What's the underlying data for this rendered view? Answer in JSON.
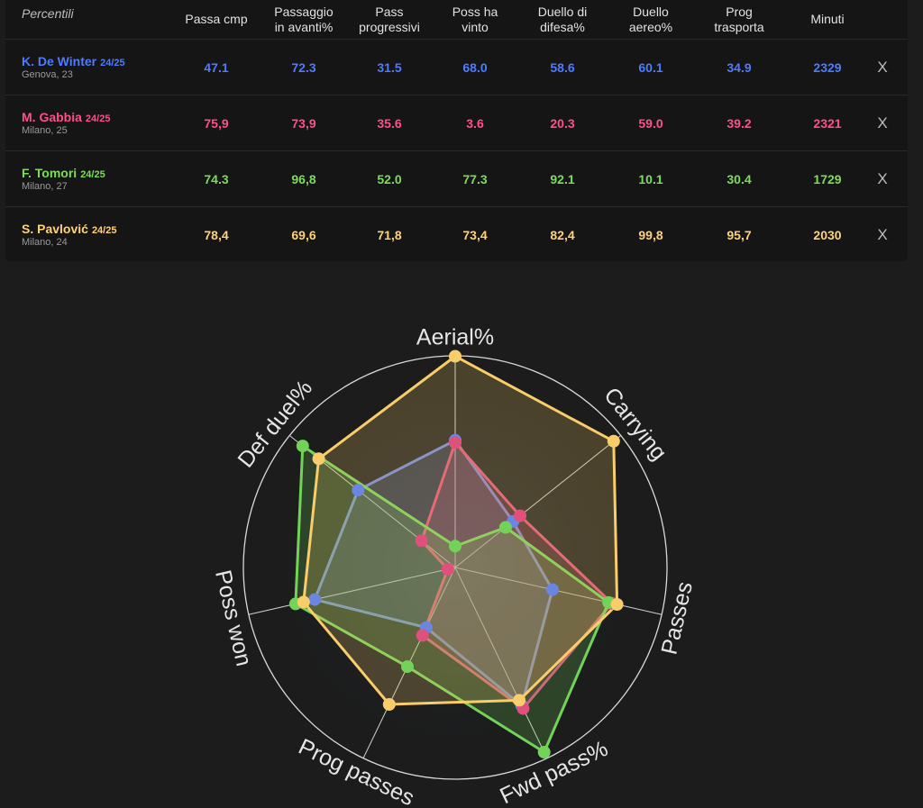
{
  "table": {
    "percentile_label": "Percentili",
    "columns": [
      "Passa cmp",
      "Passaggio\nin avanti%",
      "Pass\nprogressivi",
      "Poss ha\nvinto",
      "Duello di\ndifesa%",
      "Duello\naereo%",
      "Prog\ntrasporta",
      "Minuti"
    ],
    "remove_label": "X"
  },
  "players": [
    {
      "name": "K. De Winter",
      "season": "24/25",
      "sub": "Genova, 23",
      "color": "#4d7cff",
      "values": [
        "47.1",
        "72.3",
        "31.5",
        "68.0",
        "58.6",
        "60.1",
        "34.9",
        "2329"
      ]
    },
    {
      "name": "M. Gabbia",
      "season": "24/25",
      "sub": "Milano, 25",
      "color": "#ff4f8d",
      "values": [
        "75,9",
        "73,9",
        "35.6",
        "3.6",
        "20.3",
        "59.0",
        "39.2",
        "2321"
      ]
    },
    {
      "name": "F. Tomori",
      "season": "24/25",
      "sub": "Milano, 27",
      "color": "#7ddc5a",
      "values": [
        "74.3",
        "96,8",
        "52.0",
        "77.3",
        "92.1",
        "10.1",
        "30.4",
        "1729"
      ]
    },
    {
      "name": "S. Pavlović",
      "season": "24/25",
      "sub": "Milano, 24",
      "color": "#ffd27a",
      "values": [
        "78,4",
        "69,6",
        "71,8",
        "73,4",
        "82,4",
        "99,8",
        "95,7",
        "2030"
      ]
    }
  ],
  "chart_data": {
    "type": "radar",
    "axes": [
      "Aerial%",
      "Carrying",
      "Passes",
      "Fwd pass%",
      "Prog passes",
      "Poss won",
      "Def duel%"
    ],
    "range": [
      0,
      100
    ],
    "series": [
      {
        "name": "K. De Winter",
        "color": "#6b86e0",
        "values": [
          60.1,
          34.9,
          47.1,
          72.3,
          31.5,
          68.0,
          58.6
        ]
      },
      {
        "name": "M. Gabbia",
        "color": "#e0507c",
        "values": [
          59.0,
          39.2,
          75.9,
          73.9,
          35.6,
          3.6,
          20.3
        ]
      },
      {
        "name": "F. Tomori",
        "color": "#72d358",
        "values": [
          10.1,
          30.4,
          74.3,
          96.8,
          52.0,
          77.3,
          92.1
        ]
      },
      {
        "name": "S. Pavlović",
        "color": "#f8cd6a",
        "values": [
          99.8,
          95.7,
          78.4,
          69.6,
          71.8,
          73.4,
          82.4
        ]
      }
    ]
  }
}
